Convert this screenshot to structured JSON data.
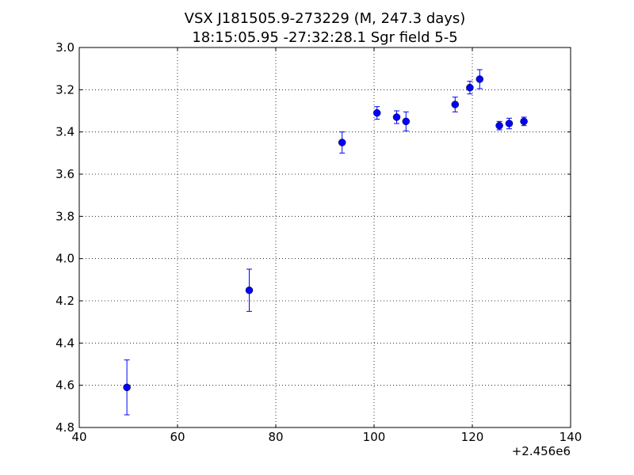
{
  "chart_data": {
    "type": "scatter",
    "title": "VSX J181505.9-273229  (M, 247.3 days)",
    "subtitle": "18:15:05.95 -27:32:28.1 Sgr field 5-5",
    "xlabel": "",
    "ylabel": "",
    "x_offset_label": "+2.456e6",
    "xlim": [
      40,
      140
    ],
    "ylim": [
      3.0,
      4.8
    ],
    "y_inverted": true,
    "grid": true,
    "x_ticks": [
      40,
      60,
      80,
      100,
      120,
      140
    ],
    "x_tick_labels": [
      "40",
      "60",
      "80",
      "100",
      "120",
      "140"
    ],
    "y_ticks": [
      3.0,
      3.2,
      3.4,
      3.6,
      3.8,
      4.0,
      4.2,
      4.4,
      4.6,
      4.8
    ],
    "y_tick_labels": [
      "3.0",
      "3.2",
      "3.4",
      "3.6",
      "3.8",
      "4.0",
      "4.2",
      "4.4",
      "4.6",
      "4.8"
    ],
    "series": [
      {
        "color": "#0000ff",
        "points": [
          {
            "x": 49.7,
            "y": 4.61,
            "err": 0.13
          },
          {
            "x": 74.6,
            "y": 4.15,
            "err": 0.1
          },
          {
            "x": 93.5,
            "y": 3.45,
            "err": 0.05
          },
          {
            "x": 100.6,
            "y": 3.31,
            "err": 0.03
          },
          {
            "x": 104.6,
            "y": 3.33,
            "err": 0.03
          },
          {
            "x": 106.5,
            "y": 3.35,
            "err": 0.045
          },
          {
            "x": 116.5,
            "y": 3.27,
            "err": 0.035
          },
          {
            "x": 119.5,
            "y": 3.19,
            "err": 0.03
          },
          {
            "x": 121.5,
            "y": 3.15,
            "err": 0.045
          },
          {
            "x": 125.5,
            "y": 3.37,
            "err": 0.02
          },
          {
            "x": 127.5,
            "y": 3.36,
            "err": 0.025
          },
          {
            "x": 130.5,
            "y": 3.35,
            "err": 0.02
          }
        ]
      }
    ]
  }
}
